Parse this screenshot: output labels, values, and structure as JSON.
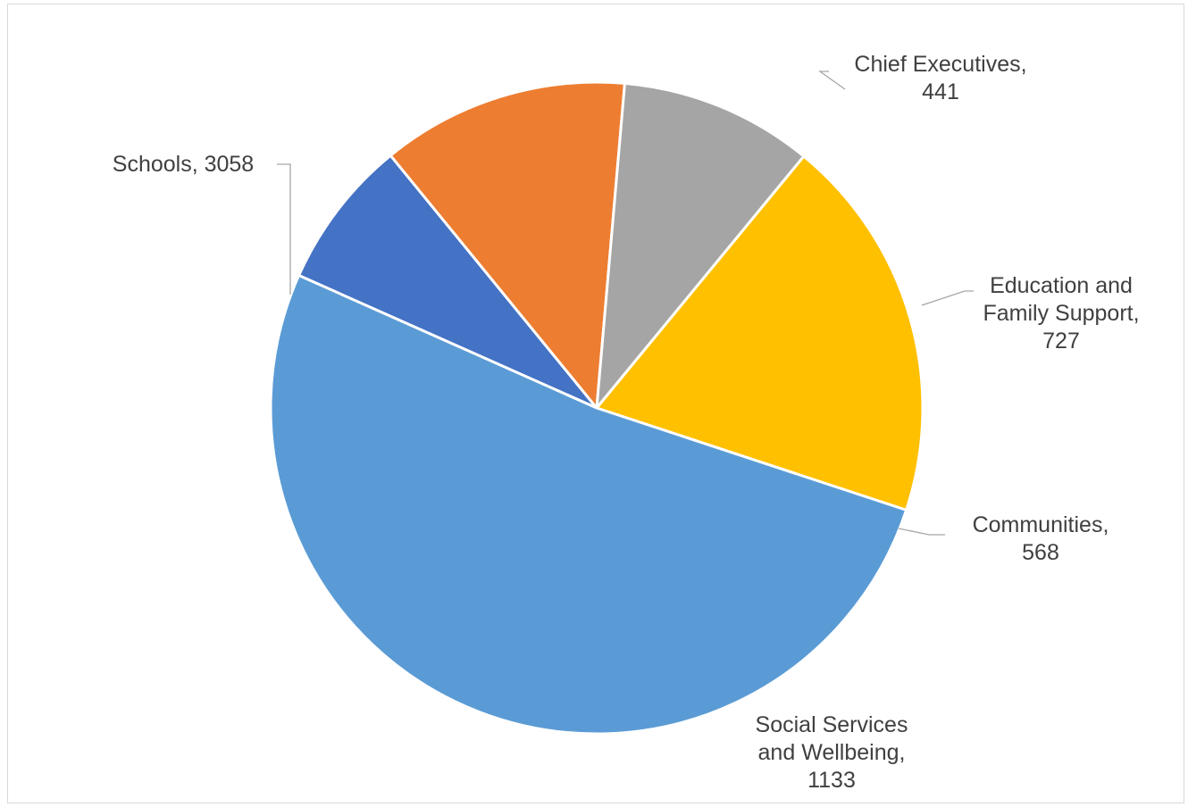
{
  "chart_data": {
    "type": "pie",
    "title": "",
    "series": [
      {
        "values": [
          441,
          727,
          568,
          1133,
          3058
        ],
        "categories": [
          "Chief Executives",
          "Education and Family Support",
          "Communities",
          "Social Services and Wellbeing",
          "Schools"
        ],
        "colors": [
          "#4472C4",
          "#ED7D31",
          "#A5A5A5",
          "#FFC000",
          "#5B9BD5"
        ]
      }
    ],
    "data_labels": [
      {
        "lines": [
          "Chief Executives,",
          "441"
        ]
      },
      {
        "lines": [
          "Education and",
          "Family Support,",
          "727"
        ]
      },
      {
        "lines": [
          "Communities,",
          "568"
        ]
      },
      {
        "lines": [
          "Social Services",
          "and Wellbeing,",
          "1133"
        ]
      },
      {
        "lines": [
          "Schools, 3058"
        ]
      }
    ],
    "legend": "none",
    "grid": false
  }
}
